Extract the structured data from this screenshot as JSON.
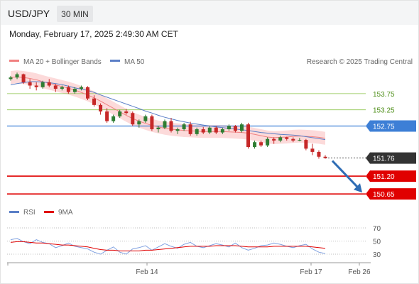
{
  "header": {
    "symbol": "USD/JPY",
    "timeframe": "30 MIN",
    "datetime": "Monday, February 17, 2025 2:49:30 AM CET"
  },
  "legend": {
    "ma20": "MA 20 + Bollinger Bands",
    "ma50": "MA 50",
    "credit": "Research © 2025 Trading Central",
    "rsi": "RSI",
    "rsi_ma": "9MA"
  },
  "colors": {
    "ma20": "#f08080",
    "bollinger_fill": "#fbd3d3",
    "ma50": "#5b7fc7",
    "resistance": "#8bc34a",
    "pivot": "#3d7fd6",
    "support": "#e00000",
    "current": "#333333",
    "candle_up": "#2e7d32",
    "candle_down": "#c62828",
    "arrow": "#2f6db5"
  },
  "chart_data": [
    {
      "type": "candlestick",
      "title": "USD/JPY",
      "y_range": [
        150.5,
        154.45
      ],
      "x_ticks": [
        "Feb 14",
        "Feb 17",
        "Feb 26"
      ],
      "levels": [
        {
          "kind": "resistance",
          "value": 153.75,
          "label": "153.75"
        },
        {
          "kind": "resistance",
          "value": 153.25,
          "label": "153.25"
        },
        {
          "kind": "pivot",
          "value": 152.75,
          "label": "152.75"
        },
        {
          "kind": "current",
          "value": 151.76,
          "label": "151.76"
        },
        {
          "kind": "support",
          "value": 151.2,
          "label": "151.20"
        },
        {
          "kind": "support",
          "value": 150.65,
          "label": "150.65"
        }
      ],
      "series": [
        {
          "name": "MA 20 + Bollinger Bands",
          "values": [
            154.25,
            154.27,
            154.25,
            154.22,
            154.18,
            154.12,
            154.07,
            154.02,
            153.97,
            153.92,
            153.86,
            153.79,
            153.71,
            153.62,
            153.52,
            153.41,
            153.3,
            153.19,
            153.08,
            152.98,
            152.9,
            152.83,
            152.77,
            152.72,
            152.68,
            152.65,
            152.63,
            152.61,
            152.6,
            152.59,
            152.58,
            152.58,
            152.58,
            152.58,
            152.57,
            152.56,
            152.55,
            152.53,
            152.49,
            152.45,
            152.41,
            152.39,
            152.4,
            152.41,
            152.43,
            152.44,
            152.43,
            152.42,
            152.4,
            152.37
          ]
        },
        {
          "name": "MA 50",
          "values": [
            154.02,
            154.06,
            154.09,
            154.12,
            154.12,
            154.11,
            154.09,
            154.06,
            154.03,
            153.98,
            153.93,
            153.89,
            153.85,
            153.79,
            153.71,
            153.64,
            153.57,
            153.5,
            153.43,
            153.36,
            153.29,
            153.21,
            153.15,
            153.08,
            153.02,
            152.97,
            152.92,
            152.88,
            152.84,
            152.81,
            152.78,
            152.75,
            152.72,
            152.7,
            152.68,
            152.66,
            152.63,
            152.61,
            152.58,
            152.55,
            152.53,
            152.51,
            152.49,
            152.48,
            152.47,
            152.45,
            152.42,
            152.39,
            152.36,
            152.33
          ]
        },
        {
          "name": "RSI",
          "values": [
            52,
            54,
            49,
            46,
            52,
            48,
            46,
            40,
            43,
            47,
            42,
            40,
            38,
            33,
            30,
            36,
            41,
            33,
            30,
            38,
            40,
            43,
            36,
            41,
            46,
            42,
            39,
            45,
            48,
            42,
            40,
            43,
            46,
            44,
            41,
            47,
            40,
            36,
            39,
            43,
            44,
            47,
            45,
            42,
            40,
            43,
            45,
            38,
            33,
            31
          ]
        },
        {
          "name": "9MA",
          "values": [
            48,
            49,
            49,
            48,
            47,
            47,
            46,
            45,
            44,
            44,
            43,
            42,
            41,
            39,
            37,
            36,
            36,
            35,
            35,
            35,
            35,
            36,
            36,
            37,
            38,
            39,
            40,
            41,
            42,
            42,
            42,
            42,
            43,
            43,
            43,
            43,
            42,
            41,
            41,
            41,
            41,
            42,
            42,
            42,
            42,
            42,
            42,
            41,
            40,
            39
          ]
        }
      ],
      "candles": [
        [
          154.2,
          154.3,
          154.15,
          154.25
        ],
        [
          154.25,
          154.4,
          154.2,
          154.35
        ],
        [
          154.35,
          154.37,
          154.05,
          154.1
        ],
        [
          154.1,
          154.2,
          153.9,
          154.0
        ],
        [
          154.0,
          154.1,
          153.85,
          153.95
        ],
        [
          153.95,
          154.15,
          153.9,
          154.1
        ],
        [
          154.1,
          154.2,
          153.95,
          154.0
        ],
        [
          154.0,
          154.05,
          153.8,
          153.9
        ],
        [
          153.9,
          154.0,
          153.85,
          153.95
        ],
        [
          153.95,
          154.0,
          153.75,
          153.8
        ],
        [
          153.8,
          153.95,
          153.75,
          153.9
        ],
        [
          153.9,
          154.0,
          153.85,
          153.95
        ],
        [
          153.95,
          153.98,
          153.55,
          153.6
        ],
        [
          153.6,
          153.7,
          153.35,
          153.4
        ],
        [
          153.4,
          153.45,
          153.1,
          153.2
        ],
        [
          153.2,
          153.3,
          152.85,
          152.9
        ],
        [
          152.9,
          153.1,
          152.85,
          153.05
        ],
        [
          153.05,
          153.25,
          153.0,
          153.2
        ],
        [
          153.2,
          153.28,
          153.1,
          153.15
        ],
        [
          153.15,
          153.2,
          152.75,
          152.8
        ],
        [
          152.8,
          152.95,
          152.7,
          152.9
        ],
        [
          152.9,
          153.1,
          152.85,
          153.05
        ],
        [
          153.05,
          153.1,
          152.6,
          152.65
        ],
        [
          152.65,
          152.75,
          152.55,
          152.7
        ],
        [
          152.7,
          152.95,
          152.65,
          152.9
        ],
        [
          152.9,
          153.0,
          152.55,
          152.6
        ],
        [
          152.6,
          152.7,
          152.5,
          152.65
        ],
        [
          152.65,
          152.85,
          152.6,
          152.8
        ],
        [
          152.8,
          152.88,
          152.45,
          152.5
        ],
        [
          152.5,
          152.7,
          152.45,
          152.65
        ],
        [
          152.65,
          152.72,
          152.5,
          152.55
        ],
        [
          152.55,
          152.75,
          152.5,
          152.7
        ],
        [
          152.7,
          152.75,
          152.5,
          152.55
        ],
        [
          152.55,
          152.7,
          152.5,
          152.65
        ],
        [
          152.65,
          152.8,
          152.6,
          152.75
        ],
        [
          152.75,
          152.78,
          152.55,
          152.6
        ],
        [
          152.6,
          152.85,
          152.55,
          152.8
        ],
        [
          152.8,
          152.85,
          152.05,
          152.1
        ],
        [
          152.1,
          152.3,
          152.05,
          152.25
        ],
        [
          152.25,
          152.3,
          152.1,
          152.15
        ],
        [
          152.15,
          152.4,
          152.1,
          152.35
        ],
        [
          152.35,
          152.4,
          152.2,
          152.3
        ],
        [
          152.3,
          152.45,
          152.25,
          152.4
        ],
        [
          152.4,
          152.42,
          152.3,
          152.35
        ],
        [
          152.35,
          152.4,
          152.25,
          152.3
        ],
        [
          152.3,
          152.38,
          152.28,
          152.32
        ],
        [
          152.32,
          152.35,
          152.0,
          152.05
        ],
        [
          152.05,
          152.2,
          151.85,
          151.95
        ],
        [
          151.95,
          152.0,
          151.74,
          151.8
        ],
        [
          151.8,
          151.85,
          151.74,
          151.76
        ]
      ],
      "forecast": {
        "from": 151.76,
        "to": 150.65
      },
      "rsi_levels": [
        70,
        50,
        30
      ]
    }
  ]
}
